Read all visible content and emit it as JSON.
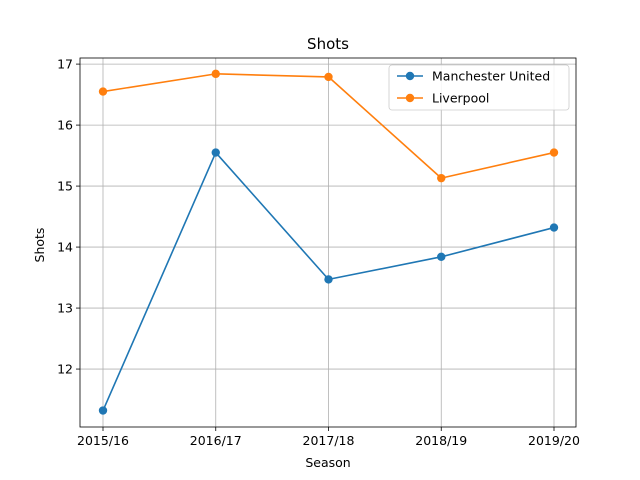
{
  "chart_data": {
    "type": "line",
    "title": "Shots",
    "xlabel": "Season",
    "ylabel": "Shots",
    "categories": [
      "2015/16",
      "2016/17",
      "2017/18",
      "2018/19",
      "2019/20"
    ],
    "yticks": [
      12,
      13,
      14,
      15,
      16,
      17
    ],
    "ylim": [
      11.05,
      17.1
    ],
    "grid": true,
    "legend_position": "top-right",
    "series": [
      {
        "name": "Manchester United",
        "color": "#1f77b4",
        "marker": "circle",
        "values": [
          11.32,
          15.55,
          13.47,
          13.84,
          14.32
        ]
      },
      {
        "name": "Liverpool",
        "color": "#ff7f0e",
        "marker": "circle",
        "values": [
          16.55,
          16.84,
          16.79,
          15.13,
          15.55
        ]
      }
    ]
  }
}
